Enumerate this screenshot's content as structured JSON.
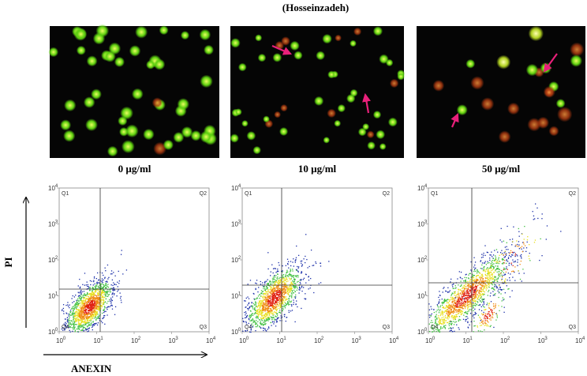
{
  "header": {
    "title": "(Hosseinzadeh)"
  },
  "panels": [
    {
      "label": "0 µg/ml",
      "quadrants": [
        "Q1",
        "Q2",
        "Q3",
        "Q4"
      ]
    },
    {
      "label": "10 µg/ml",
      "quadrants": [
        "Q1",
        "Q2",
        "Q3",
        "Q4"
      ]
    },
    {
      "label": "50 µg/ml",
      "quadrants": [
        "Q1",
        "Q2",
        "Q3",
        "Q4"
      ]
    }
  ],
  "axes": {
    "y_label": "PI",
    "x_label": "ANEXIN",
    "ticks": [
      {
        "base": "10",
        "exponent": "0"
      },
      {
        "base": "10",
        "exponent": "1"
      },
      {
        "base": "10",
        "exponent": "2"
      },
      {
        "base": "10",
        "exponent": "3"
      },
      {
        "base": "10",
        "exponent": "4"
      }
    ]
  }
}
